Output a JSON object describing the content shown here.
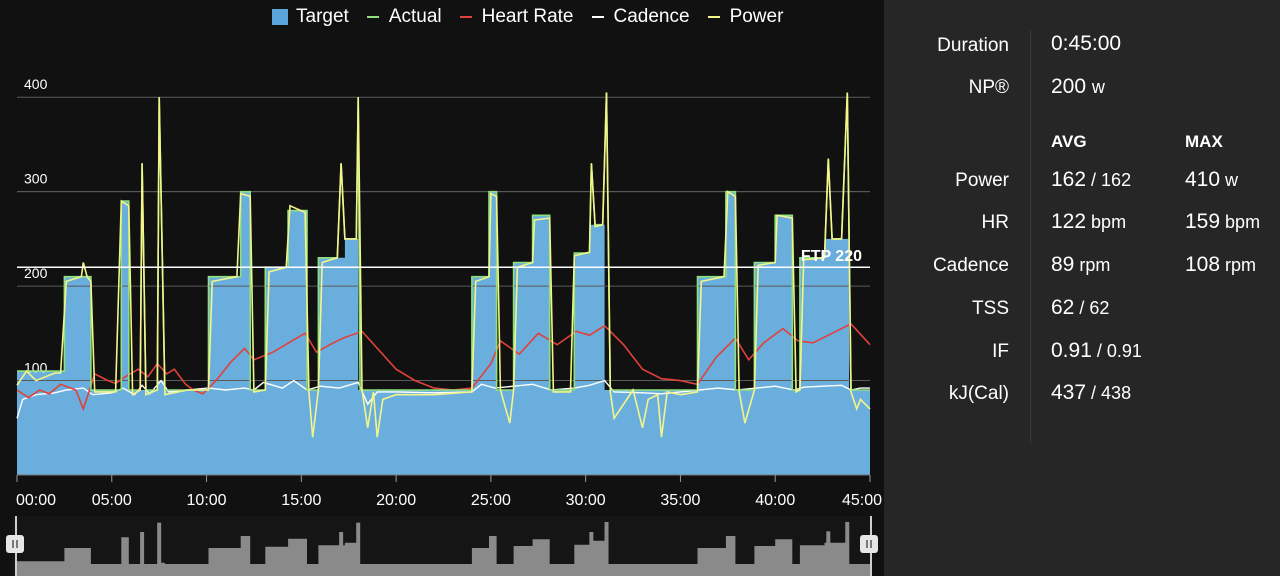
{
  "legend": [
    {
      "label": "Target",
      "color": "#5aa6dc",
      "kind": "box"
    },
    {
      "label": "Actual",
      "color": "#8fe07a",
      "kind": "line"
    },
    {
      "label": "Heart Rate",
      "color": "#e0413a",
      "kind": "line"
    },
    {
      "label": "Cadence",
      "color": "#ffffff",
      "kind": "line"
    },
    {
      "label": "Power",
      "color": "#f3f58a",
      "kind": "line"
    }
  ],
  "ftp_label": "FTP 220",
  "chart_data": {
    "type": "area",
    "xlabel": "",
    "ylabel": "",
    "xlim": [
      0,
      45
    ],
    "ylim": [
      0,
      450
    ],
    "x_tick_labels": [
      "00:00",
      "05:00",
      "10:00",
      "15:00",
      "20:00",
      "25:00",
      "30:00",
      "35:00",
      "40:00",
      "45:00"
    ],
    "y_tick_labels": [
      "100",
      "200",
      "300",
      "400"
    ],
    "ftp": 220,
    "grid": true,
    "legend_position": "top",
    "target": [
      [
        0,
        110
      ],
      [
        2.5,
        110
      ],
      [
        2.5,
        210
      ],
      [
        3.9,
        210
      ],
      [
        3.9,
        90
      ],
      [
        5.5,
        90
      ],
      [
        5.5,
        290
      ],
      [
        5.9,
        290
      ],
      [
        5.9,
        90
      ],
      [
        7.4,
        90
      ],
      [
        7.4,
        100
      ],
      [
        7.8,
        100
      ],
      [
        7.8,
        90
      ],
      [
        10.1,
        90
      ],
      [
        10.1,
        210
      ],
      [
        11.8,
        210
      ],
      [
        11.8,
        300
      ],
      [
        12.3,
        300
      ],
      [
        12.3,
        90
      ],
      [
        13.1,
        90
      ],
      [
        13.1,
        220
      ],
      [
        14.3,
        220
      ],
      [
        14.3,
        280
      ],
      [
        15.3,
        280
      ],
      [
        15.3,
        90
      ],
      [
        15.9,
        90
      ],
      [
        15.9,
        230
      ],
      [
        17.3,
        230
      ],
      [
        17.3,
        250
      ],
      [
        18.0,
        250
      ],
      [
        18.0,
        90
      ],
      [
        24.0,
        90
      ],
      [
        24.0,
        210
      ],
      [
        24.9,
        210
      ],
      [
        24.9,
        300
      ],
      [
        25.3,
        300
      ],
      [
        25.3,
        90
      ],
      [
        26.2,
        90
      ],
      [
        26.2,
        225
      ],
      [
        27.2,
        225
      ],
      [
        27.2,
        275
      ],
      [
        28.1,
        275
      ],
      [
        28.1,
        90
      ],
      [
        29.4,
        90
      ],
      [
        29.4,
        235
      ],
      [
        30.2,
        235
      ],
      [
        30.2,
        265
      ],
      [
        31.0,
        265
      ],
      [
        31.0,
        90
      ],
      [
        35.9,
        90
      ],
      [
        35.9,
        210
      ],
      [
        37.4,
        210
      ],
      [
        37.4,
        300
      ],
      [
        37.9,
        300
      ],
      [
        37.9,
        90
      ],
      [
        38.9,
        90
      ],
      [
        38.9,
        225
      ],
      [
        40.0,
        225
      ],
      [
        40.0,
        275
      ],
      [
        40.9,
        275
      ],
      [
        40.9,
        90
      ],
      [
        41.3,
        90
      ],
      [
        41.3,
        230
      ],
      [
        42.6,
        230
      ],
      [
        42.6,
        250
      ],
      [
        43.9,
        250
      ],
      [
        43.9,
        90
      ],
      [
        45,
        90
      ]
    ],
    "actual": [
      [
        0,
        110
      ],
      [
        2.5,
        110
      ],
      [
        2.5,
        210
      ],
      [
        3.9,
        210
      ],
      [
        3.9,
        90
      ],
      [
        5.5,
        90
      ],
      [
        5.5,
        290
      ],
      [
        5.9,
        290
      ],
      [
        5.9,
        90
      ],
      [
        6.5,
        90
      ],
      [
        6.6,
        330
      ],
      [
        6.8,
        90
      ],
      [
        7.4,
        90
      ],
      [
        7.5,
        400
      ],
      [
        7.8,
        90
      ],
      [
        10.1,
        90
      ],
      [
        10.1,
        210
      ],
      [
        11.8,
        210
      ],
      [
        11.8,
        300
      ],
      [
        12.3,
        300
      ],
      [
        12.3,
        90
      ],
      [
        13.1,
        90
      ],
      [
        13.1,
        220
      ],
      [
        14.3,
        220
      ],
      [
        14.3,
        280
      ],
      [
        15.3,
        280
      ],
      [
        15.3,
        90
      ],
      [
        15.9,
        90
      ],
      [
        15.9,
        230
      ],
      [
        16.9,
        230
      ],
      [
        17.1,
        330
      ],
      [
        17.3,
        250
      ],
      [
        17.9,
        250
      ],
      [
        18.0,
        400
      ],
      [
        18.1,
        90
      ],
      [
        24.0,
        90
      ],
      [
        24.0,
        210
      ],
      [
        24.9,
        210
      ],
      [
        24.9,
        300
      ],
      [
        25.3,
        300
      ],
      [
        25.3,
        90
      ],
      [
        26.2,
        90
      ],
      [
        26.2,
        225
      ],
      [
        27.2,
        225
      ],
      [
        27.2,
        275
      ],
      [
        28.1,
        275
      ],
      [
        28.1,
        90
      ],
      [
        29.4,
        90
      ],
      [
        29.4,
        235
      ],
      [
        30.2,
        235
      ],
      [
        30.3,
        330
      ],
      [
        30.5,
        265
      ],
      [
        30.9,
        265
      ],
      [
        31.1,
        405
      ],
      [
        31.3,
        90
      ],
      [
        35.9,
        90
      ],
      [
        35.9,
        210
      ],
      [
        37.4,
        210
      ],
      [
        37.4,
        300
      ],
      [
        37.9,
        300
      ],
      [
        37.9,
        90
      ],
      [
        38.9,
        90
      ],
      [
        38.9,
        225
      ],
      [
        40.0,
        225
      ],
      [
        40.0,
        275
      ],
      [
        40.9,
        275
      ],
      [
        40.9,
        90
      ],
      [
        41.3,
        90
      ],
      [
        41.3,
        230
      ],
      [
        42.6,
        230
      ],
      [
        42.8,
        335
      ],
      [
        43.0,
        250
      ],
      [
        43.5,
        250
      ],
      [
        43.8,
        405
      ],
      [
        44.0,
        90
      ],
      [
        45,
        90
      ]
    ],
    "power": [
      [
        0,
        95
      ],
      [
        0.5,
        110
      ],
      [
        1.0,
        100
      ],
      [
        2.0,
        108
      ],
      [
        2.3,
        108
      ],
      [
        2.6,
        205
      ],
      [
        3.4,
        210
      ],
      [
        3.5,
        225
      ],
      [
        3.7,
        210
      ],
      [
        3.9,
        205
      ],
      [
        4.1,
        88
      ],
      [
        5.2,
        88
      ],
      [
        5.5,
        290
      ],
      [
        5.9,
        285
      ],
      [
        6.1,
        85
      ],
      [
        6.5,
        90
      ],
      [
        6.6,
        330
      ],
      [
        6.8,
        85
      ],
      [
        7.4,
        90
      ],
      [
        7.5,
        400
      ],
      [
        7.8,
        85
      ],
      [
        9.0,
        90
      ],
      [
        10.1,
        90
      ],
      [
        10.3,
        205
      ],
      [
        11.6,
        210
      ],
      [
        11.8,
        298
      ],
      [
        12.3,
        295
      ],
      [
        12.5,
        88
      ],
      [
        13.1,
        90
      ],
      [
        13.3,
        215
      ],
      [
        14.2,
        220
      ],
      [
        14.4,
        285
      ],
      [
        15.2,
        278
      ],
      [
        15.4,
        88
      ],
      [
        15.6,
        40
      ],
      [
        15.9,
        90
      ],
      [
        16.1,
        225
      ],
      [
        16.9,
        230
      ],
      [
        17.1,
        330
      ],
      [
        17.3,
        250
      ],
      [
        17.9,
        250
      ],
      [
        18.0,
        400
      ],
      [
        18.2,
        90
      ],
      [
        18.5,
        50
      ],
      [
        18.8,
        88
      ],
      [
        19.0,
        40
      ],
      [
        19.3,
        80
      ],
      [
        20,
        85
      ],
      [
        22,
        85
      ],
      [
        24.0,
        88
      ],
      [
        24.2,
        205
      ],
      [
        24.9,
        210
      ],
      [
        25.0,
        298
      ],
      [
        25.3,
        295
      ],
      [
        25.5,
        90
      ],
      [
        26.0,
        55
      ],
      [
        26.2,
        90
      ],
      [
        26.4,
        220
      ],
      [
        27.2,
        225
      ],
      [
        27.3,
        270
      ],
      [
        28.1,
        272
      ],
      [
        28.3,
        88
      ],
      [
        29.2,
        88
      ],
      [
        29.4,
        232
      ],
      [
        30.2,
        236
      ],
      [
        30.3,
        330
      ],
      [
        30.5,
        263
      ],
      [
        30.9,
        265
      ],
      [
        31.1,
        405
      ],
      [
        31.3,
        88
      ],
      [
        31.5,
        60
      ],
      [
        32.5,
        90
      ],
      [
        33,
        50
      ],
      [
        33.3,
        80
      ],
      [
        33.8,
        85
      ],
      [
        34.0,
        40
      ],
      [
        34.3,
        88
      ],
      [
        35.0,
        85
      ],
      [
        35.9,
        88
      ],
      [
        36.1,
        205
      ],
      [
        37.3,
        210
      ],
      [
        37.5,
        300
      ],
      [
        37.9,
        295
      ],
      [
        38.1,
        88
      ],
      [
        38.4,
        55
      ],
      [
        38.9,
        90
      ],
      [
        39.1,
        222
      ],
      [
        40.0,
        225
      ],
      [
        40.1,
        275
      ],
      [
        40.9,
        272
      ],
      [
        41.1,
        88
      ],
      [
        41.3,
        90
      ],
      [
        41.5,
        228
      ],
      [
        42.6,
        230
      ],
      [
        42.8,
        335
      ],
      [
        43.0,
        250
      ],
      [
        43.5,
        250
      ],
      [
        43.8,
        405
      ],
      [
        44.0,
        88
      ],
      [
        44.3,
        70
      ],
      [
        44.5,
        80
      ],
      [
        45,
        70
      ]
    ],
    "heart_rate": [
      [
        0,
        90
      ],
      [
        0.6,
        82
      ],
      [
        1.2,
        90
      ],
      [
        1.7,
        86
      ],
      [
        2.3,
        96
      ],
      [
        3.1,
        90
      ],
      [
        3.5,
        70
      ],
      [
        3.8,
        88
      ],
      [
        4.1,
        107
      ],
      [
        4.8,
        100
      ],
      [
        5.2,
        97
      ],
      [
        5.8,
        105
      ],
      [
        6.4,
        112
      ],
      [
        6.9,
        104
      ],
      [
        7.4,
        118
      ],
      [
        7.9,
        107
      ],
      [
        8.3,
        112
      ],
      [
        8.9,
        96
      ],
      [
        9.3,
        90
      ],
      [
        9.8,
        86
      ],
      [
        10.5,
        100
      ],
      [
        11.3,
        120
      ],
      [
        12.0,
        134
      ],
      [
        12.5,
        122
      ],
      [
        13.5,
        130
      ],
      [
        14.5,
        142
      ],
      [
        15.2,
        150
      ],
      [
        15.8,
        130
      ],
      [
        16.5,
        138
      ],
      [
        17.2,
        145
      ],
      [
        18.2,
        152
      ],
      [
        19.1,
        132
      ],
      [
        20.0,
        112
      ],
      [
        21.0,
        100
      ],
      [
        22.0,
        92
      ],
      [
        23.0,
        90
      ],
      [
        24.0,
        92
      ],
      [
        25.0,
        118
      ],
      [
        25.5,
        142
      ],
      [
        26.5,
        128
      ],
      [
        27.5,
        150
      ],
      [
        28.5,
        138
      ],
      [
        29.5,
        152
      ],
      [
        30.2,
        148
      ],
      [
        31.0,
        158
      ],
      [
        32.0,
        138
      ],
      [
        33.0,
        112
      ],
      [
        34.0,
        102
      ],
      [
        35.0,
        100
      ],
      [
        35.9,
        96
      ],
      [
        36.9,
        125
      ],
      [
        37.9,
        145
      ],
      [
        38.6,
        122
      ],
      [
        39.4,
        140
      ],
      [
        40.4,
        155
      ],
      [
        41.2,
        142
      ],
      [
        42.0,
        140
      ],
      [
        43.0,
        150
      ],
      [
        44.0,
        160
      ],
      [
        45,
        138
      ]
    ],
    "cadence": [
      [
        0,
        60
      ],
      [
        0.3,
        80
      ],
      [
        1.0,
        85
      ],
      [
        2.0,
        87
      ],
      [
        2.6,
        90
      ],
      [
        3.5,
        92
      ],
      [
        4.0,
        85
      ],
      [
        5.0,
        87
      ],
      [
        5.6,
        92
      ],
      [
        6.2,
        85
      ],
      [
        6.6,
        95
      ],
      [
        7.0,
        86
      ],
      [
        7.6,
        100
      ],
      [
        8.0,
        88
      ],
      [
        9.0,
        90
      ],
      [
        10.1,
        92
      ],
      [
        11.0,
        90
      ],
      [
        12.0,
        92
      ],
      [
        12.5,
        90
      ],
      [
        13.0,
        98
      ],
      [
        14.0,
        92
      ],
      [
        14.6,
        100
      ],
      [
        15.3,
        90
      ],
      [
        16.0,
        94
      ],
      [
        17.0,
        92
      ],
      [
        18.0,
        98
      ],
      [
        18.5,
        75
      ],
      [
        19.0,
        88
      ],
      [
        20,
        88
      ],
      [
        22,
        87
      ],
      [
        24,
        88
      ],
      [
        24.5,
        96
      ],
      [
        25.2,
        92
      ],
      [
        26.2,
        94
      ],
      [
        27.2,
        96
      ],
      [
        28.2,
        90
      ],
      [
        29.4,
        92
      ],
      [
        30.2,
        95
      ],
      [
        31.0,
        100
      ],
      [
        31.5,
        88
      ],
      [
        33.0,
        87
      ],
      [
        34.0,
        86
      ],
      [
        35.0,
        88
      ],
      [
        36.0,
        90
      ],
      [
        37.0,
        92
      ],
      [
        38.0,
        90
      ],
      [
        39.0,
        92
      ],
      [
        40.0,
        94
      ],
      [
        41.0,
        90
      ],
      [
        41.5,
        93
      ],
      [
        42.5,
        94
      ],
      [
        43.5,
        95
      ],
      [
        44.0,
        90
      ],
      [
        44.5,
        92
      ],
      [
        45,
        92
      ]
    ]
  },
  "stats": {
    "duration": {
      "label": "Duration",
      "value": "0:45:00"
    },
    "np": {
      "label": "NP®",
      "value": "200",
      "unit": "w"
    },
    "avg_header": "AVG",
    "max_header": "MAX",
    "rows": [
      {
        "label": "Power",
        "avg": "162",
        "avg_suffix": " / 162",
        "max": "410",
        "max_unit": " w"
      },
      {
        "label": "HR",
        "avg": "122",
        "avg_suffix": " bpm",
        "max": "159",
        "max_unit": " bpm"
      },
      {
        "label": "Cadence",
        "avg": "89",
        "avg_suffix": " rpm",
        "max": "108",
        "max_unit": " rpm"
      },
      {
        "label": "TSS",
        "avg": "62",
        "avg_suffix": " / 62",
        "max": "",
        "max_unit": ""
      },
      {
        "label": "IF",
        "avg": "0.91",
        "avg_suffix": " / 0.91",
        "max": "",
        "max_unit": ""
      },
      {
        "label": "kJ(Cal)",
        "avg": "437",
        "avg_suffix": " / 438",
        "max": "",
        "max_unit": ""
      }
    ]
  }
}
